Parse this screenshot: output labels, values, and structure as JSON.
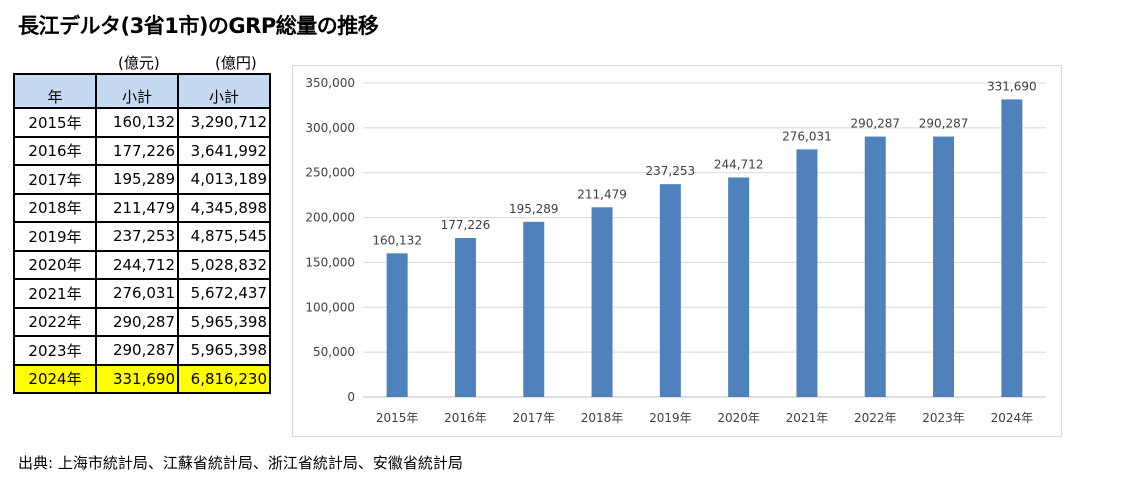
{
  "title": "長江デルタ(3省1市)のGRP総量の推移",
  "table": {
    "unit_labels": [
      "(億元)",
      "(億円)"
    ],
    "headers": [
      "年",
      "小計",
      "小計"
    ],
    "rows": [
      [
        "2015年",
        "160,132",
        "3,290,712"
      ],
      [
        "2016年",
        "177,226",
        "3,641,992"
      ],
      [
        "2017年",
        "195,289",
        "4,013,189"
      ],
      [
        "2018年",
        "211,479",
        "4,345,898"
      ],
      [
        "2019年",
        "237,253",
        "4,875,545"
      ],
      [
        "2020年",
        "244,712",
        "5,028,832"
      ],
      [
        "2021年",
        "276,031",
        "5,672,437"
      ],
      [
        "2022年",
        "290,287",
        "5,965,398"
      ],
      [
        "2023年",
        "290,287",
        "5,965,398"
      ],
      [
        "2024年",
        "331,690",
        "6,816,230"
      ]
    ],
    "highlight_row": 9,
    "highlight_color": "#ffff00",
    "header_color": "#c5d9f1"
  },
  "chart_data": {
    "type": "bar",
    "categories": [
      "2015年",
      "2016年",
      "2017年",
      "2018年",
      "2019年",
      "2020年",
      "2021年",
      "2022年",
      "2023年",
      "2024年"
    ],
    "values": [
      160132,
      177226,
      195289,
      211479,
      237253,
      244712,
      276031,
      290287,
      290287,
      331690
    ],
    "data_labels": [
      "160,132",
      "177,226",
      "195,289",
      "211,479",
      "237,253",
      "244,712",
      "276,031",
      "290,287",
      "290,287",
      "331,690"
    ],
    "y_ticks": [
      "0",
      "50,000",
      "100,000",
      "150,000",
      "200,000",
      "250,000",
      "300,000",
      "350,000"
    ],
    "ylim": [
      0,
      350000
    ],
    "grid": true,
    "legend": "none",
    "bar_color": "#4f81bd"
  },
  "source": "出典: 上海市統計局、江蘇省統計局、浙江省統計局、安徽省統計局"
}
